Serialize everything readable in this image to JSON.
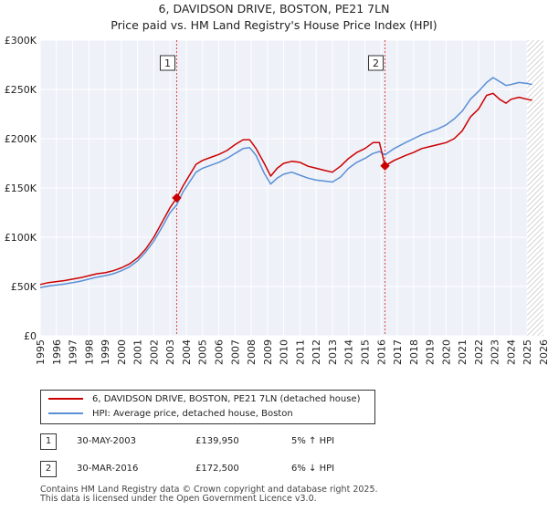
{
  "chart_data": {
    "type": "line",
    "title": "6, DAVIDSON DRIVE, BOSTON, PE21 7LN",
    "subtitle": "Price paid vs. HM Land Registry's House Price Index (HPI)",
    "xlim": [
      1995,
      2026
    ],
    "ylim": [
      0,
      300000
    ],
    "x_ticks": [
      "1995",
      "1996",
      "1997",
      "1998",
      "1999",
      "2000",
      "2001",
      "2002",
      "2003",
      "2004",
      "2005",
      "2006",
      "2007",
      "2008",
      "2009",
      "2010",
      "2011",
      "2012",
      "2013",
      "2014",
      "2015",
      "2016",
      "2017",
      "2018",
      "2019",
      "2020",
      "2021",
      "2022",
      "2023",
      "2024",
      "2025",
      "2026"
    ],
    "y_ticks": [
      {
        "value": 0,
        "label": "£0"
      },
      {
        "value": 50000,
        "label": "£50K"
      },
      {
        "value": 100000,
        "label": "£100K"
      },
      {
        "value": 150000,
        "label": "£150K"
      },
      {
        "value": 200000,
        "label": "£200K"
      },
      {
        "value": 250000,
        "label": "£250K"
      },
      {
        "value": 300000,
        "label": "£300K"
      }
    ],
    "grid": true,
    "forecast_from": 2025.0,
    "series": [
      {
        "name": "6, DAVIDSON DRIVE, BOSTON, PE21 7LN (detached house)",
        "color": "#cc0000",
        "points": [
          [
            1995.0,
            52000
          ],
          [
            1995.5,
            54000
          ],
          [
            1996.0,
            55000
          ],
          [
            1996.5,
            56000
          ],
          [
            1997.0,
            57500
          ],
          [
            1997.5,
            59000
          ],
          [
            1998.0,
            61000
          ],
          [
            1998.5,
            63000
          ],
          [
            1999.0,
            64000
          ],
          [
            1999.5,
            66000
          ],
          [
            2000.0,
            69000
          ],
          [
            2000.5,
            73000
          ],
          [
            2001.0,
            79000
          ],
          [
            2001.5,
            88000
          ],
          [
            2002.0,
            100000
          ],
          [
            2002.5,
            115000
          ],
          [
            2003.0,
            130000
          ],
          [
            2003.41,
            139950
          ],
          [
            2003.8,
            152000
          ],
          [
            2004.2,
            163000
          ],
          [
            2004.6,
            174000
          ],
          [
            2005.0,
            178000
          ],
          [
            2005.5,
            181000
          ],
          [
            2006.0,
            184000
          ],
          [
            2006.5,
            188000
          ],
          [
            2007.0,
            194000
          ],
          [
            2007.5,
            199000
          ],
          [
            2007.9,
            199000
          ],
          [
            2008.3,
            190000
          ],
          [
            2008.8,
            175000
          ],
          [
            2009.2,
            162000
          ],
          [
            2009.6,
            170000
          ],
          [
            2010.0,
            175000
          ],
          [
            2010.5,
            177000
          ],
          [
            2011.0,
            176000
          ],
          [
            2011.5,
            172000
          ],
          [
            2012.0,
            170000
          ],
          [
            2012.5,
            168000
          ],
          [
            2013.0,
            166000
          ],
          [
            2013.5,
            172000
          ],
          [
            2014.0,
            180000
          ],
          [
            2014.5,
            186000
          ],
          [
            2015.0,
            190000
          ],
          [
            2015.5,
            196000
          ],
          [
            2015.9,
            196000
          ],
          [
            2016.24,
            172500
          ],
          [
            2016.8,
            178000
          ],
          [
            2017.5,
            183000
          ],
          [
            2018.0,
            186000
          ],
          [
            2018.5,
            190000
          ],
          [
            2019.0,
            192000
          ],
          [
            2019.5,
            194000
          ],
          [
            2020.0,
            196000
          ],
          [
            2020.5,
            200000
          ],
          [
            2021.0,
            208000
          ],
          [
            2021.5,
            222000
          ],
          [
            2022.0,
            230000
          ],
          [
            2022.5,
            244000
          ],
          [
            2022.9,
            246000
          ],
          [
            2023.3,
            240000
          ],
          [
            2023.7,
            236000
          ],
          [
            2024.0,
            240000
          ],
          [
            2024.5,
            242000
          ],
          [
            2025.0,
            240000
          ],
          [
            2025.3,
            239000
          ]
        ]
      },
      {
        "name": "HPI: Average price, detached house, Boston",
        "color": "#5b8fd6",
        "points": [
          [
            1995.0,
            49000
          ],
          [
            1995.5,
            50500
          ],
          [
            1996.0,
            51500
          ],
          [
            1996.5,
            52500
          ],
          [
            1997.0,
            54000
          ],
          [
            1997.5,
            55500
          ],
          [
            1998.0,
            57500
          ],
          [
            1998.5,
            59500
          ],
          [
            1999.0,
            61000
          ],
          [
            1999.5,
            63000
          ],
          [
            2000.0,
            66000
          ],
          [
            2000.5,
            70000
          ],
          [
            2001.0,
            76000
          ],
          [
            2001.5,
            85000
          ],
          [
            2002.0,
            96000
          ],
          [
            2002.5,
            110000
          ],
          [
            2003.0,
            125000
          ],
          [
            2003.41,
            133000
          ],
          [
            2003.8,
            146000
          ],
          [
            2004.2,
            156000
          ],
          [
            2004.6,
            166000
          ],
          [
            2005.0,
            170000
          ],
          [
            2005.5,
            173000
          ],
          [
            2006.0,
            176000
          ],
          [
            2006.5,
            180000
          ],
          [
            2007.0,
            185000
          ],
          [
            2007.5,
            190000
          ],
          [
            2007.9,
            191000
          ],
          [
            2008.3,
            183000
          ],
          [
            2008.8,
            165000
          ],
          [
            2009.2,
            154000
          ],
          [
            2009.6,
            160000
          ],
          [
            2010.0,
            164000
          ],
          [
            2010.5,
            166000
          ],
          [
            2011.0,
            163000
          ],
          [
            2011.5,
            160000
          ],
          [
            2012.0,
            158000
          ],
          [
            2012.5,
            157000
          ],
          [
            2013.0,
            156000
          ],
          [
            2013.5,
            161000
          ],
          [
            2014.0,
            170000
          ],
          [
            2014.5,
            176000
          ],
          [
            2015.0,
            180000
          ],
          [
            2015.5,
            185000
          ],
          [
            2015.9,
            187000
          ],
          [
            2016.24,
            183500
          ],
          [
            2016.8,
            190000
          ],
          [
            2017.5,
            196000
          ],
          [
            2018.0,
            200000
          ],
          [
            2018.5,
            204000
          ],
          [
            2019.0,
            207000
          ],
          [
            2019.5,
            210000
          ],
          [
            2020.0,
            214000
          ],
          [
            2020.5,
            220000
          ],
          [
            2021.0,
            228000
          ],
          [
            2021.5,
            240000
          ],
          [
            2022.0,
            248000
          ],
          [
            2022.5,
            257000
          ],
          [
            2022.9,
            262000
          ],
          [
            2023.3,
            258000
          ],
          [
            2023.7,
            254000
          ],
          [
            2024.0,
            255000
          ],
          [
            2024.5,
            257000
          ],
          [
            2025.0,
            256000
          ],
          [
            2025.3,
            255000
          ]
        ]
      }
    ],
    "sales": [
      {
        "num": "1",
        "x": 2003.41,
        "y": 139950,
        "date": "30-MAY-2003",
        "price": "£139,950",
        "hpi": "5% ↑ HPI"
      },
      {
        "num": "2",
        "x": 2016.24,
        "y": 172500,
        "date": "30-MAR-2016",
        "price": "£172,500",
        "hpi": "6% ↓ HPI"
      }
    ]
  },
  "legend": {
    "property_label": "6, DAVIDSON DRIVE, BOSTON, PE21 7LN (detached house)",
    "hpi_label": "HPI: Average price, detached house, Boston"
  },
  "footer": {
    "line1": "Contains HM Land Registry data © Crown copyright and database right 2025.",
    "line2": "This data is licensed under the Open Government Licence v3.0."
  }
}
